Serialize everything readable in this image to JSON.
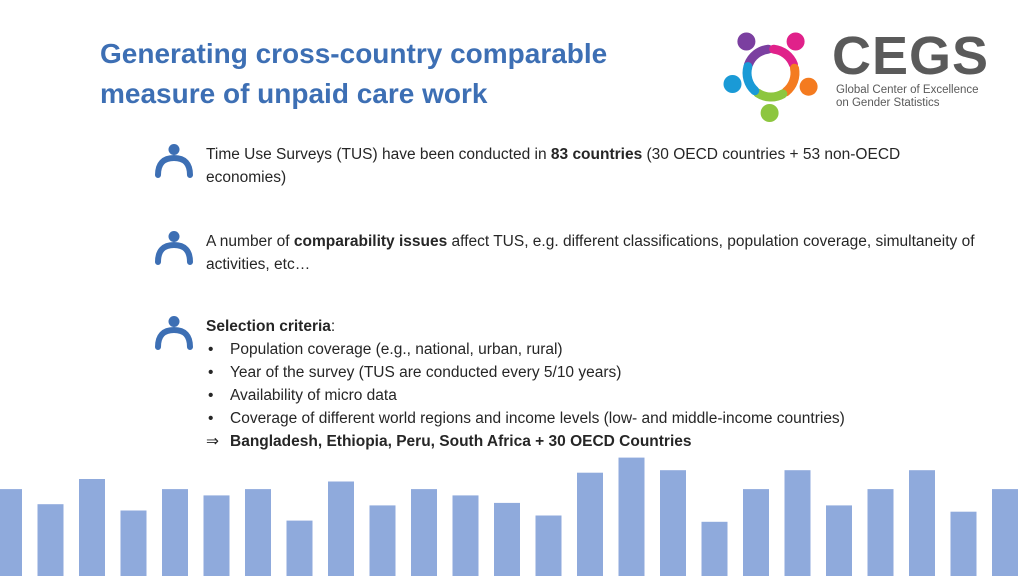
{
  "title": {
    "line1": "Generating cross-country comparable",
    "line2": "measure of unpaid care work"
  },
  "logo": {
    "wordmark": "CEGS",
    "sub_line1": "Global Center of Excellence",
    "sub_line2": "on Gender Statistics",
    "colors": [
      "#7b3fa0",
      "#e0218a",
      "#f47b20",
      "#8dc63f",
      "#1a9ad6"
    ]
  },
  "bullets": [
    {
      "icon": "person-icon",
      "parts": [
        "Time Use Surveys (TUS) have been conducted in ",
        "83 countries",
        " (30 OECD countries + 53 non-OECD economies)"
      ]
    },
    {
      "icon": "person-icon",
      "parts": [
        "A number of ",
        "comparability issues",
        " affect TUS, e.g. different classifications, population coverage, simultaneity of activities, etc…"
      ]
    },
    {
      "icon": "person-icon",
      "heading": "Selection criteria",
      "heading_suffix": ":",
      "items": [
        "Population coverage (e.g., national, urban, rural)",
        "Year of the survey (TUS are conducted every 5/10 years)",
        "Availability of micro data",
        "Coverage of different world regions and income levels (low- and middle-income countries)"
      ],
      "conclusion_arrow": "⇒",
      "conclusion": "Bangladesh, Ethiopia, Peru, South Africa + 30 OECD Countries"
    }
  ],
  "decor": {
    "bar_color": "#8faadc",
    "bar_levels": [
      0.69,
      0.57,
      0.77,
      0.52,
      0.69,
      0.64,
      0.69,
      0.44,
      0.75,
      0.56,
      0.69,
      0.64,
      0.58,
      0.48,
      0.82,
      0.94,
      0.84,
      0.43,
      0.69,
      0.84,
      0.56,
      0.69,
      0.84,
      0.51,
      0.69
    ]
  }
}
